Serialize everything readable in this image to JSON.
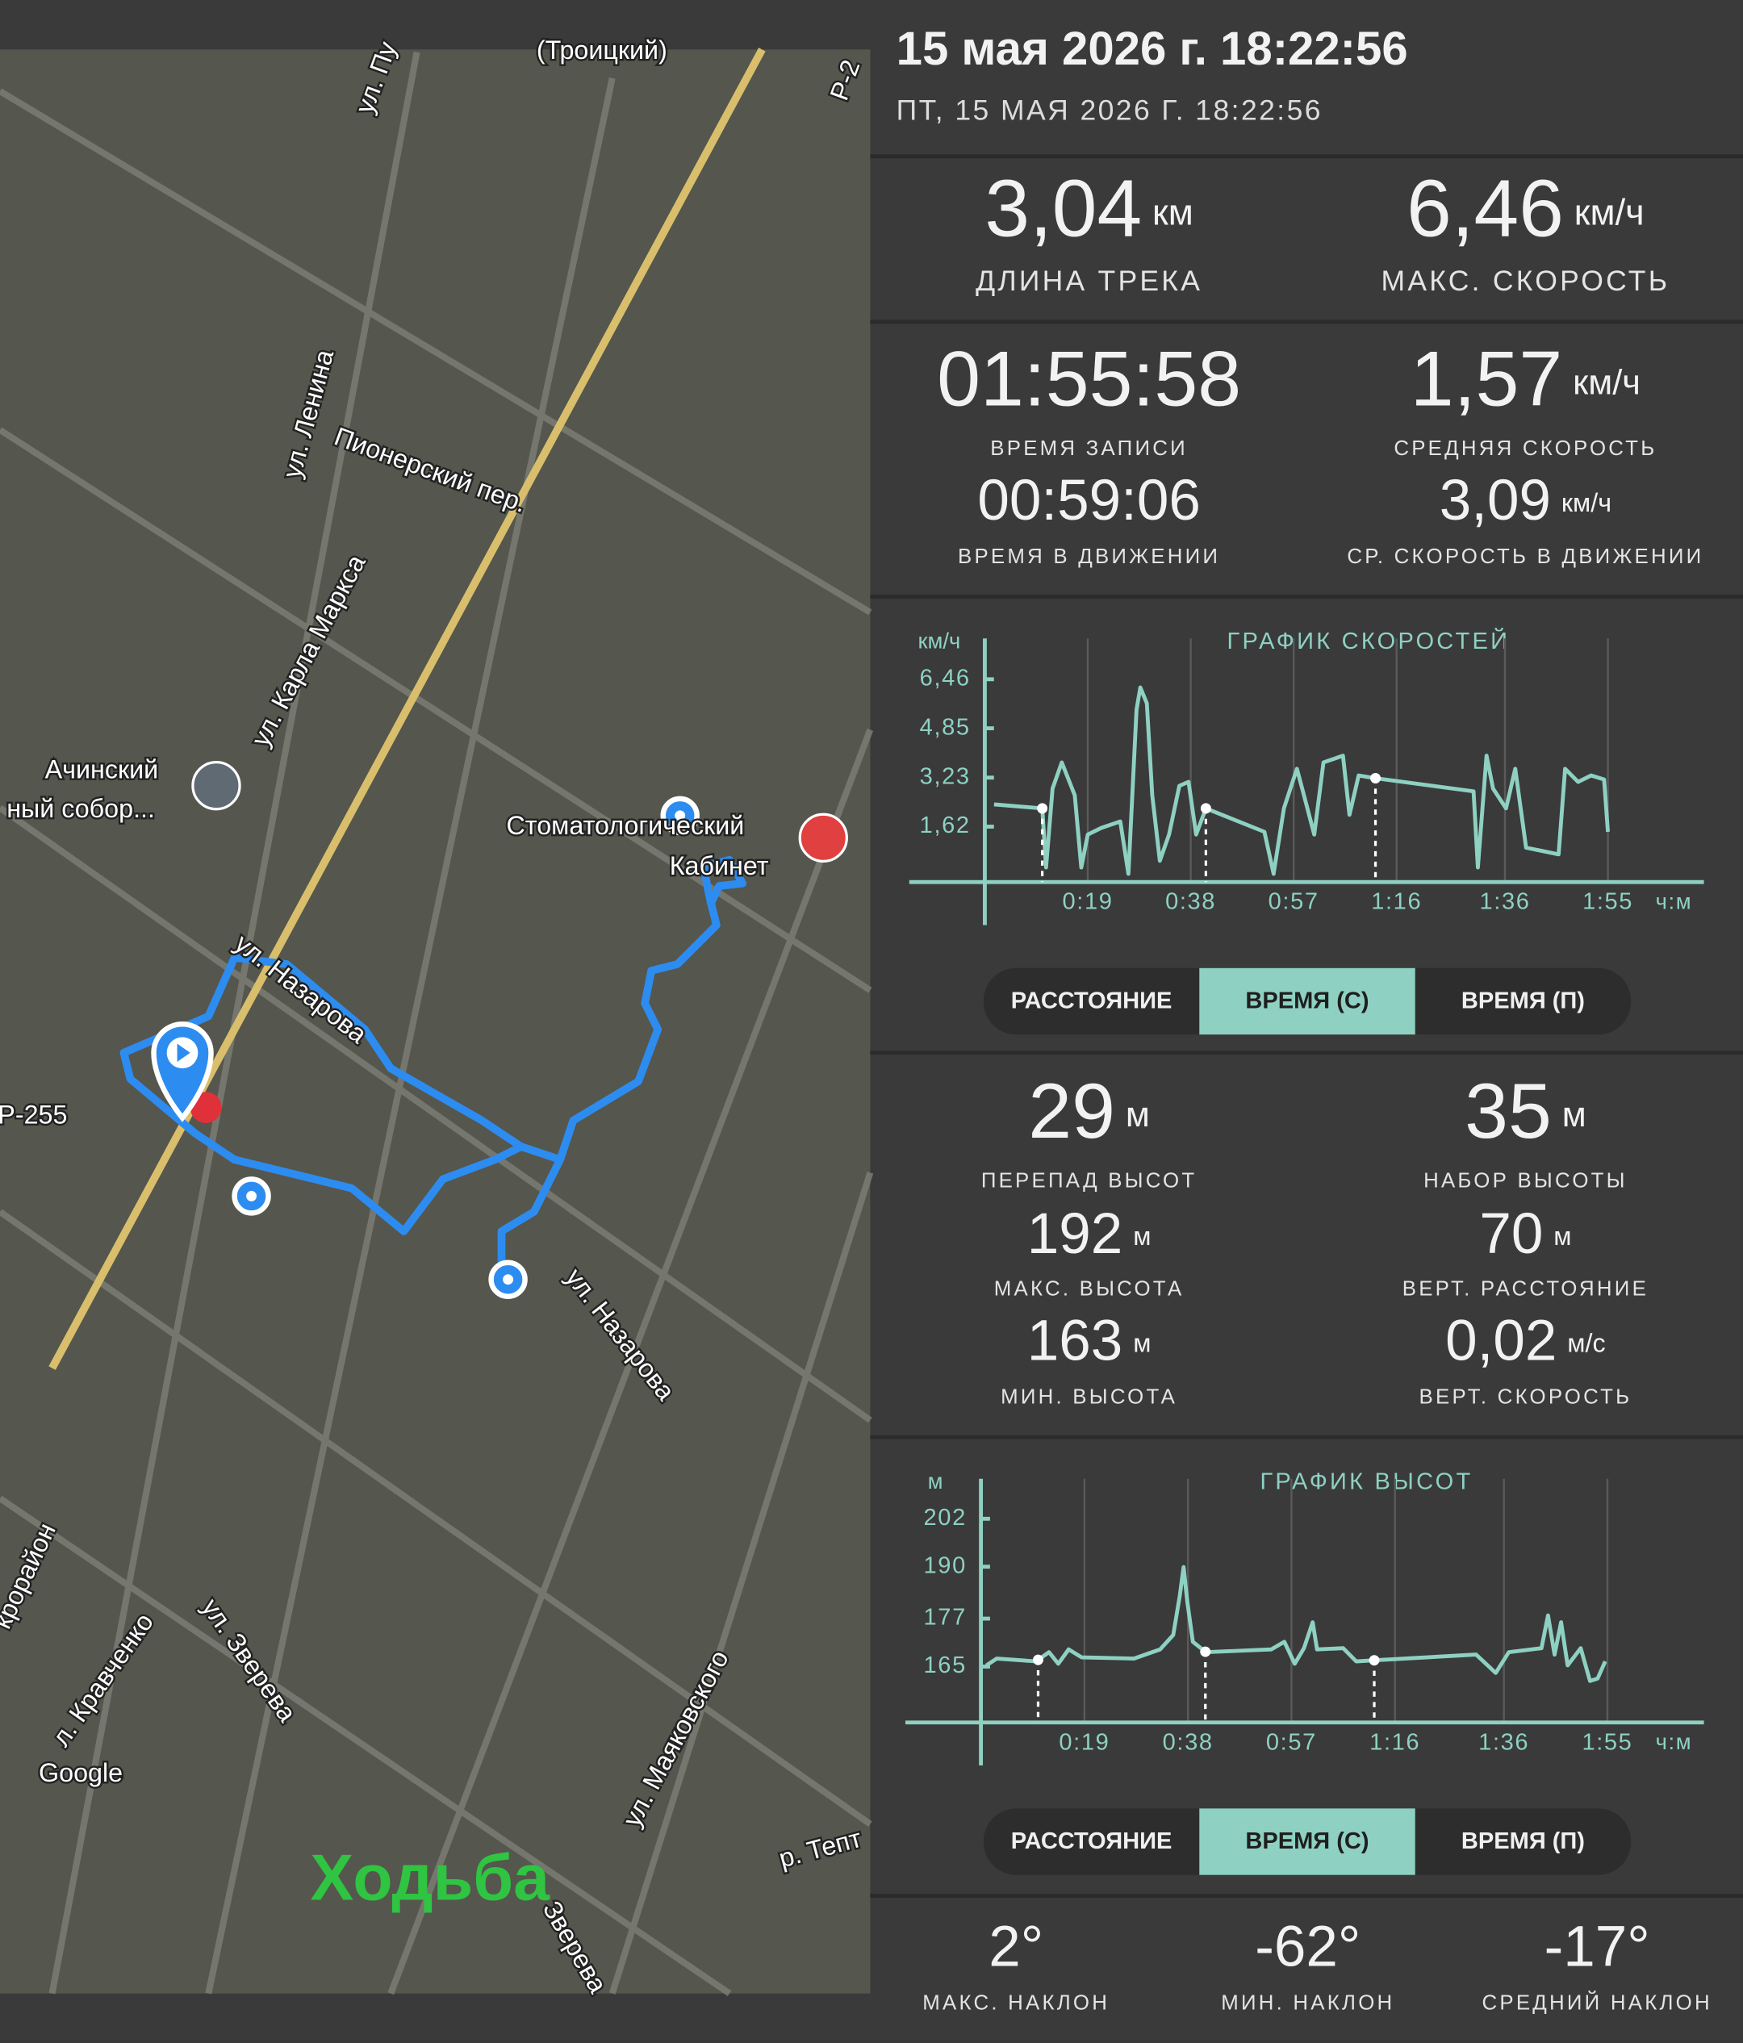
{
  "header": {
    "title": "15 мая 2026 г. 18:22:56",
    "subtitle": "ПТ, 15 МАЯ 2026 Г. 18:22:56"
  },
  "stats": [
    {
      "value": "3,04",
      "unit": "км",
      "label": "ДЛИНА ТРЕКА"
    },
    {
      "value": "6,46",
      "unit": "км/ч",
      "label": "МАКС. СКОРОСТЬ"
    },
    {
      "value": "01:55:58",
      "label": "ВРЕМЯ ЗАПИСИ"
    },
    {
      "value": "1,57",
      "unit": "км/ч",
      "label": "СРЕДНЯЯ СКОРОСТЬ"
    },
    {
      "value": "00:59:06",
      "label": "ВРЕМЯ В ДВИЖЕНИИ"
    },
    {
      "value": "3,09",
      "unit": "км/ч",
      "label": "СР. СКОРОСТЬ В ДВИЖЕНИИ"
    }
  ],
  "altitude_stats": [
    {
      "value": "29",
      "unit": "м",
      "label": "ПЕРЕПАД ВЫСОТ"
    },
    {
      "value": "35",
      "unit": "м",
      "label": "НАБОР ВЫСОТЫ"
    },
    {
      "value": "192",
      "unit": "м",
      "label": "МАКС. ВЫСОТА"
    },
    {
      "value": "70",
      "unit": "м",
      "label": "ВЕРТ. РАССТОЯНИЕ"
    },
    {
      "value": "163",
      "unit": "м",
      "label": "МИН. ВЫСОТА"
    },
    {
      "value": "0,02",
      "unit": "м/с",
      "label": "ВЕРТ. СКОРОСТЬ"
    }
  ],
  "slope_stats": [
    {
      "value": "2°",
      "label": "МАКС. НАКЛОН"
    },
    {
      "value": "-62°",
      "label": "МИН. НАКЛОН"
    },
    {
      "value": "-17°",
      "label": "СРЕДНИЙ НАКЛОН"
    }
  ],
  "chart_data": [
    {
      "type": "line",
      "title": "ГРАФИК СКОРОСТЕЙ",
      "y_label": "км/ч",
      "x_label": "ч:м",
      "color": "#8ed1c2",
      "xlim": [
        0,
        132
      ],
      "ylim": [
        -0.2,
        7.8
      ],
      "yticks": [
        {
          "value": 1.62,
          "label": "1,62"
        },
        {
          "value": 3.23,
          "label": "3,23"
        },
        {
          "value": 4.85,
          "label": "4,85"
        },
        {
          "value": 6.46,
          "label": "6,46"
        }
      ],
      "xticks": [
        {
          "value": 19,
          "label": "0:19"
        },
        {
          "value": 38,
          "label": "0:38"
        },
        {
          "value": 57,
          "label": "0:57"
        },
        {
          "value": 76,
          "label": "1:16"
        },
        {
          "value": 96,
          "label": "1:36"
        },
        {
          "value": 115,
          "label": "1:55"
        }
      ],
      "x": [
        1.7,
        10.6,
        11.3,
        12.5,
        14.2,
        16.6,
        17.8,
        19,
        21.5,
        25,
        26.5,
        28,
        28.7,
        29.9,
        30.9,
        32.3,
        34,
        35.9,
        37.6,
        39,
        40.8,
        51.6,
        53.3,
        55.2,
        57.6,
        58.9,
        60.8,
        62.5,
        66.1,
        67.3,
        69,
        72.1,
        90.2,
        91,
        92.6,
        93.8,
        96.2,
        97.9,
        99.9,
        105.9,
        107.1,
        109.5,
        111.9,
        114.3,
        115
      ],
      "values": [
        2.35,
        2.22,
        0.28,
        2.87,
        3.73,
        2.65,
        0.28,
        1.36,
        1.58,
        1.79,
        0.07,
        5.46,
        6.19,
        5.67,
        2.65,
        0.5,
        1.36,
        2.96,
        3.09,
        1.36,
        2.22,
        1.45,
        0.07,
        2.22,
        3.52,
        2.65,
        1.36,
        3.73,
        3.95,
        2.01,
        3.3,
        3.21,
        2.78,
        0.28,
        3.95,
        2.87,
        2.22,
        3.52,
        0.93,
        0.71,
        3.52,
        3.09,
        3.3,
        3.17,
        1.45
      ],
      "markers": [
        10.6,
        40.8,
        72.1
      ],
      "toggle": {
        "options": [
          "РАССТОЯНИЕ",
          "ВРЕМЯ (С)",
          "ВРЕМЯ (П)"
        ],
        "selected": 1
      }
    },
    {
      "type": "line",
      "title": "ГРАФИК ВЫСОТ",
      "y_label": "м",
      "x_label": "ч:м",
      "color": "#8ed1c2",
      "xlim": [
        0,
        132
      ],
      "ylim": [
        151,
        212
      ],
      "yticks": [
        165,
        177,
        190,
        202
      ],
      "xticks": [
        {
          "value": 19,
          "label": "0:19"
        },
        {
          "value": 38,
          "label": "0:38"
        },
        {
          "value": 57,
          "label": "0:57"
        },
        {
          "value": 76,
          "label": "1:16"
        },
        {
          "value": 96,
          "label": "1:36"
        },
        {
          "value": 115,
          "label": "1:55"
        }
      ],
      "x": [
        1,
        2.9,
        10.1,
        12.5,
        14.2,
        16.1,
        18.5,
        28.1,
        32.9,
        35.3,
        36.5,
        37.2,
        37.9,
        38.9,
        41.3,
        53.3,
        55.7,
        57.6,
        59.3,
        60.9,
        61.7,
        66.5,
        68.9,
        72.5,
        90.9,
        94.5,
        96.9,
        102.9,
        104.1,
        105.3,
        106.5,
        107.7,
        110.1,
        111.8,
        113.2,
        114.6
      ],
      "values": [
        165.3,
        167,
        166.3,
        168.6,
        165.7,
        169.3,
        167.3,
        167,
        169.3,
        172.9,
        182.7,
        189.9,
        181.1,
        171.2,
        168.6,
        169.3,
        171.2,
        165.7,
        169.6,
        176.1,
        169.3,
        169.6,
        166.3,
        166.6,
        168,
        163.4,
        168.6,
        169.6,
        177.8,
        168,
        176.1,
        165.3,
        169.6,
        161.4,
        162,
        166.3
      ],
      "markers": [
        10.5,
        41.2,
        72.2
      ],
      "toggle": {
        "options": [
          "РАССТОЯНИЕ",
          "ВРЕМЯ (С)",
          "ВРЕМЯ (П)"
        ],
        "selected": 1
      }
    }
  ],
  "map": {
    "labels": [
      "(Троицкий)",
      "ул. Пу",
      "Р-2",
      "ул. Ленина",
      "Пионерский пер.",
      "ул. Карла Маркса",
      "Ачинский",
      "ный собор...",
      "Стоматологический",
      "Кабинет",
      "ул. Назарова",
      "Р-255",
      "ул. Назарова",
      "крорайон",
      "л. Кравченко",
      "ул. Зверева",
      "ул. Маяковского",
      "Google",
      "р. Тепт",
      "Зверева"
    ],
    "activity": "Ходьба"
  }
}
